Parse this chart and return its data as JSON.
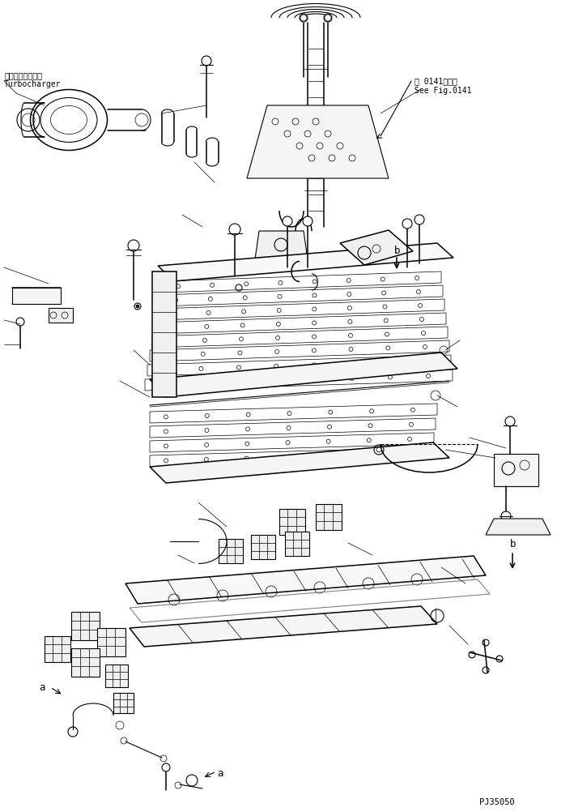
{
  "background_color": "#ffffff",
  "line_color": "#000000",
  "text_color": "#000000",
  "label_turbo_jp": "ターボチャージャ",
  "label_turbo_en": "Turbocharger",
  "label_see_fig_jp": "第 0141図参照",
  "label_see_fig_en": "See Fig.0141",
  "label_b1": "b",
  "label_b2": "b",
  "label_a1": "a",
  "label_a2": "a",
  "part_number": "PJ35050",
  "fig_width": 7.09,
  "fig_height": 10.02,
  "dpi": 100
}
